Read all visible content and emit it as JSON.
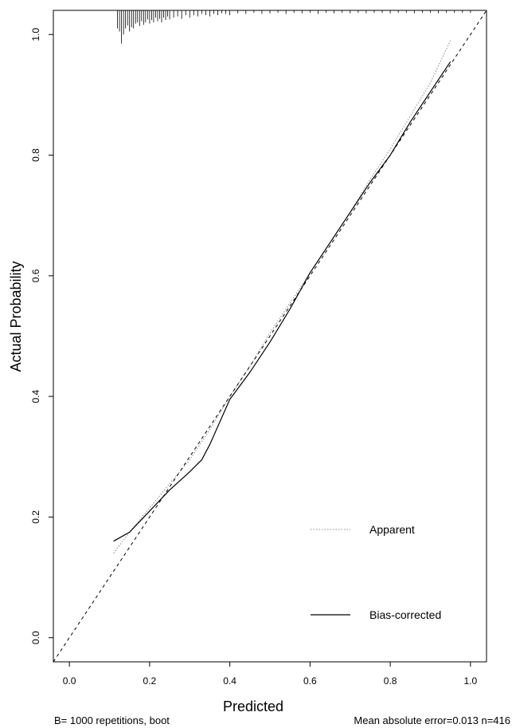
{
  "chart_data": {
    "type": "line",
    "title": "",
    "xlabel": "Predicted",
    "ylabel": "Actual Probability",
    "xlim": [
      -0.04,
      1.04
    ],
    "ylim": [
      -0.04,
      1.04
    ],
    "x_ticks": [
      "0.0",
      "0.2",
      "0.4",
      "0.6",
      "0.8",
      "1.0"
    ],
    "y_ticks": [
      "0.0",
      "0.2",
      "0.4",
      "0.6",
      "0.8",
      "1.0"
    ],
    "grid": false,
    "legend_position": "bottom-right",
    "series": [
      {
        "name": "Apparent",
        "style": "dotted",
        "x": [
          0.11,
          0.15,
          0.2,
          0.25,
          0.3,
          0.35,
          0.4,
          0.45,
          0.5,
          0.55,
          0.6,
          0.65,
          0.7,
          0.75,
          0.8,
          0.85,
          0.9,
          0.95
        ],
        "y": [
          0.14,
          0.175,
          0.215,
          0.255,
          0.295,
          0.345,
          0.4,
          0.45,
          0.505,
          0.555,
          0.605,
          0.655,
          0.705,
          0.76,
          0.81,
          0.865,
          0.92,
          0.99
        ]
      },
      {
        "name": "Bias-corrected",
        "style": "solid",
        "x": [
          0.11,
          0.15,
          0.2,
          0.25,
          0.3,
          0.33,
          0.35,
          0.4,
          0.45,
          0.5,
          0.55,
          0.6,
          0.65,
          0.7,
          0.75,
          0.8,
          0.85,
          0.9,
          0.95
        ],
        "y": [
          0.16,
          0.175,
          0.21,
          0.245,
          0.275,
          0.295,
          0.32,
          0.395,
          0.44,
          0.49,
          0.545,
          0.605,
          0.655,
          0.705,
          0.755,
          0.8,
          0.855,
          0.905,
          0.955
        ]
      },
      {
        "name": "",
        "style": "dashed",
        "x": [
          -0.04,
          1.04
        ],
        "y": [
          -0.04,
          1.04
        ]
      }
    ],
    "rug": {
      "x": [
        0.12,
        0.125,
        0.13,
        0.135,
        0.14,
        0.145,
        0.15,
        0.155,
        0.16,
        0.165,
        0.17,
        0.175,
        0.18,
        0.185,
        0.19,
        0.195,
        0.2,
        0.205,
        0.21,
        0.215,
        0.22,
        0.225,
        0.23,
        0.235,
        0.24,
        0.245,
        0.25,
        0.26,
        0.27,
        0.28,
        0.29,
        0.3,
        0.31,
        0.32,
        0.33,
        0.34,
        0.35,
        0.36,
        0.37,
        0.38,
        0.39,
        0.4,
        0.42,
        0.44,
        0.46,
        0.48,
        0.5,
        0.52,
        0.54,
        0.56,
        0.58,
        0.6,
        0.62,
        0.64,
        0.66,
        0.68,
        0.7,
        0.72,
        0.74,
        0.76,
        0.78,
        0.8,
        0.82,
        0.84,
        0.86,
        0.88,
        0.9,
        0.92,
        0.94,
        0.96,
        0.98,
        1.0
      ],
      "length": [
        0.03,
        0.035,
        0.055,
        0.04,
        0.03,
        0.025,
        0.035,
        0.028,
        0.03,
        0.022,
        0.02,
        0.026,
        0.018,
        0.024,
        0.02,
        0.015,
        0.022,
        0.016,
        0.02,
        0.012,
        0.018,
        0.014,
        0.02,
        0.012,
        0.016,
        0.01,
        0.015,
        0.012,
        0.01,
        0.014,
        0.008,
        0.012,
        0.008,
        0.01,
        0.006,
        0.008,
        0.01,
        0.006,
        0.008,
        0.005,
        0.006,
        0.008,
        0.005,
        0.006,
        0.004,
        0.006,
        0.005,
        0.004,
        0.006,
        0.004,
        0.005,
        0.004,
        0.006,
        0.004,
        0.005,
        0.004,
        0.005,
        0.004,
        0.005,
        0.004,
        0.004,
        0.005,
        0.004,
        0.004,
        0.005,
        0.004,
        0.004,
        0.005,
        0.004,
        0.004,
        0.004,
        0.004
      ]
    }
  },
  "footnotes": {
    "left": "B= 1000 repetitions, boot",
    "right": "Mean absolute error=0.013 n=416"
  }
}
